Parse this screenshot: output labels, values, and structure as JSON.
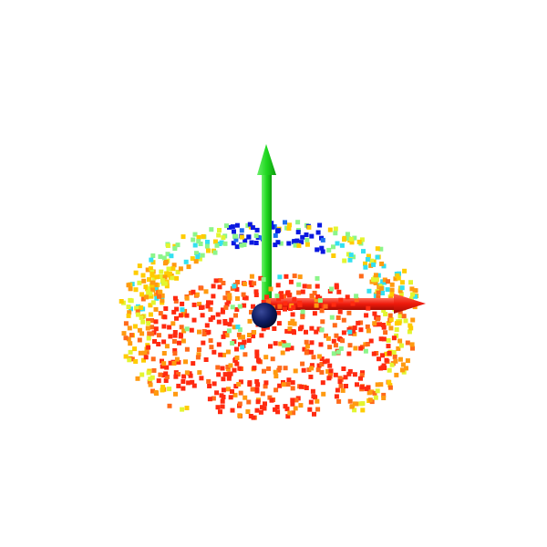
{
  "viewer": {
    "background": "#ffffff"
  },
  "axes": {
    "x": {
      "icon": "x-axis-arrow-icon",
      "color": "#ee1a0c"
    },
    "y": {
      "icon": "y-axis-arrow-icon",
      "color": "#1fd81f"
    },
    "origin": {
      "icon": "origin-sphere-icon",
      "color": "#0c1a5e"
    }
  },
  "point_cloud": {
    "icon": "point-cloud-icon",
    "colormap": "jet",
    "colors": [
      "#0a18e0",
      "#1f6ff0",
      "#33e0f0",
      "#8cf58a",
      "#e3f531",
      "#ffcc00",
      "#ff9a10",
      "#ff6a1a",
      "#ff2a10"
    ]
  }
}
